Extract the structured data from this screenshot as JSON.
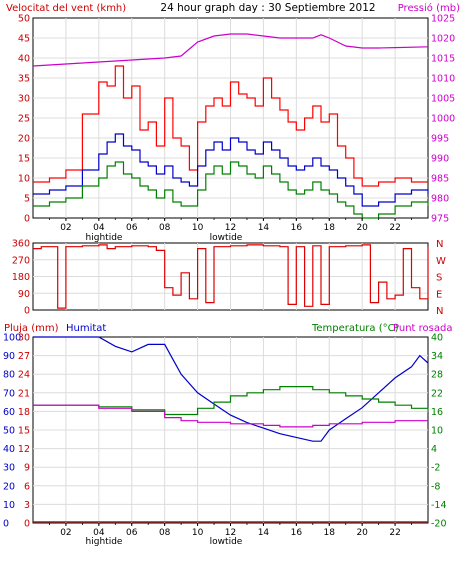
{
  "header": {
    "title": "24 hour graph day : 30 Septiembre 2012",
    "left_label": "Velocitat del vent (kmh)",
    "right_label": "Pressió (mb)"
  },
  "x_axis": {
    "ticks": [
      "02",
      "04",
      "06",
      "08",
      "10",
      "12",
      "14",
      "16",
      "18",
      "20",
      "22"
    ],
    "tide_labels": [
      "hightide",
      "lowtide"
    ]
  },
  "colors": {
    "wind_gust": "#ff0000",
    "wind_avg": "#0000cc",
    "wind_min": "#008000",
    "pressure": "#cc00cc",
    "direction": "#dd0000",
    "rain": "#dd0000",
    "humidity": "#0000cc",
    "temperature": "#008000",
    "dewpoint": "#cc00cc"
  },
  "panel3": {
    "rain_label": "Pluja (mm)",
    "humidity_label": "Humitat",
    "temp_label": "Temperatura (°C)",
    "dew_label": "Punt rosada"
  },
  "chart_data": [
    {
      "type": "line",
      "name": "wind-pressure",
      "x_range": [
        0,
        24
      ],
      "ylim_left": [
        0,
        50
      ],
      "yticks_left": [
        0,
        5,
        10,
        15,
        20,
        25,
        30,
        35,
        40,
        45,
        50
      ],
      "ylim_right": [
        975,
        1025
      ],
      "yticks_right": [
        975,
        980,
        985,
        990,
        995,
        1000,
        1005,
        1010,
        1015,
        1020,
        1025
      ],
      "series": [
        {
          "axis": "left",
          "color_key": "wind_gust",
          "points": [
            [
              0,
              9
            ],
            [
              1,
              10
            ],
            [
              2,
              12
            ],
            [
              3,
              26
            ],
            [
              4,
              34
            ],
            [
              4.5,
              33
            ],
            [
              5,
              38
            ],
            [
              5.5,
              30
            ],
            [
              6,
              33
            ],
            [
              6.5,
              22
            ],
            [
              7,
              24
            ],
            [
              7.5,
              18
            ],
            [
              8,
              30
            ],
            [
              8.5,
              20
            ],
            [
              9,
              18
            ],
            [
              9.5,
              12
            ],
            [
              10,
              24
            ],
            [
              10.5,
              28
            ],
            [
              11,
              30
            ],
            [
              11.5,
              28
            ],
            [
              12,
              34
            ],
            [
              12.5,
              31
            ],
            [
              13,
              30
            ],
            [
              13.5,
              28
            ],
            [
              14,
              35
            ],
            [
              14.5,
              30
            ],
            [
              15,
              27
            ],
            [
              15.5,
              24
            ],
            [
              16,
              22
            ],
            [
              16.5,
              25
            ],
            [
              17,
              28
            ],
            [
              17.5,
              24
            ],
            [
              18,
              26
            ],
            [
              18.5,
              18
            ],
            [
              19,
              15
            ],
            [
              19.5,
              10
            ],
            [
              20,
              8
            ],
            [
              21,
              9
            ],
            [
              22,
              10
            ],
            [
              23,
              9
            ],
            [
              24,
              9
            ]
          ]
        },
        {
          "axis": "left",
          "color_key": "wind_avg",
          "points": [
            [
              0,
              6
            ],
            [
              1,
              7
            ],
            [
              2,
              8
            ],
            [
              3,
              12
            ],
            [
              4,
              16
            ],
            [
              4.5,
              19
            ],
            [
              5,
              21
            ],
            [
              5.5,
              18
            ],
            [
              6,
              17
            ],
            [
              6.5,
              14
            ],
            [
              7,
              13
            ],
            [
              7.5,
              11
            ],
            [
              8,
              13
            ],
            [
              8.5,
              10
            ],
            [
              9,
              9
            ],
            [
              9.5,
              8
            ],
            [
              10,
              13
            ],
            [
              10.5,
              17
            ],
            [
              11,
              19
            ],
            [
              11.5,
              17
            ],
            [
              12,
              20
            ],
            [
              12.5,
              19
            ],
            [
              13,
              17
            ],
            [
              13.5,
              16
            ],
            [
              14,
              19
            ],
            [
              14.5,
              17
            ],
            [
              15,
              15
            ],
            [
              15.5,
              13
            ],
            [
              16,
              12
            ],
            [
              16.5,
              13
            ],
            [
              17,
              15
            ],
            [
              17.5,
              13
            ],
            [
              18,
              12
            ],
            [
              18.5,
              10
            ],
            [
              19,
              8
            ],
            [
              19.5,
              6
            ],
            [
              20,
              3
            ],
            [
              21,
              4
            ],
            [
              22,
              6
            ],
            [
              23,
              7
            ],
            [
              24,
              6
            ]
          ]
        },
        {
          "axis": "left",
          "color_key": "wind_min",
          "points": [
            [
              0,
              3
            ],
            [
              1,
              4
            ],
            [
              2,
              5
            ],
            [
              3,
              8
            ],
            [
              4,
              10
            ],
            [
              4.5,
              13
            ],
            [
              5,
              14
            ],
            [
              5.5,
              11
            ],
            [
              6,
              10
            ],
            [
              6.5,
              8
            ],
            [
              7,
              7
            ],
            [
              7.5,
              5
            ],
            [
              8,
              7
            ],
            [
              8.5,
              4
            ],
            [
              9,
              3
            ],
            [
              9.5,
              3
            ],
            [
              10,
              7
            ],
            [
              10.5,
              11
            ],
            [
              11,
              13
            ],
            [
              11.5,
              11
            ],
            [
              12,
              14
            ],
            [
              12.5,
              13
            ],
            [
              13,
              11
            ],
            [
              13.5,
              10
            ],
            [
              14,
              13
            ],
            [
              14.5,
              11
            ],
            [
              15,
              9
            ],
            [
              15.5,
              7
            ],
            [
              16,
              6
            ],
            [
              16.5,
              7
            ],
            [
              17,
              9
            ],
            [
              17.5,
              7
            ],
            [
              18,
              6
            ],
            [
              18.5,
              4
            ],
            [
              19,
              3
            ],
            [
              19.5,
              1
            ],
            [
              20,
              0
            ],
            [
              21,
              1
            ],
            [
              22,
              3
            ],
            [
              23,
              4
            ],
            [
              24,
              3
            ]
          ]
        },
        {
          "axis": "right",
          "color_key": "pressure",
          "points": [
            [
              0,
              1013
            ],
            [
              2,
              1013.5
            ],
            [
              4,
              1014
            ],
            [
              6,
              1014.5
            ],
            [
              8,
              1015
            ],
            [
              9,
              1015.5
            ],
            [
              10,
              1019
            ],
            [
              11,
              1020.5
            ],
            [
              12,
              1021
            ],
            [
              13,
              1021
            ],
            [
              14,
              1020.5
            ],
            [
              15,
              1020
            ],
            [
              16,
              1020
            ],
            [
              17,
              1020
            ],
            [
              17.5,
              1020.8
            ],
            [
              18,
              1020
            ],
            [
              19,
              1018
            ],
            [
              20,
              1017.5
            ],
            [
              21,
              1017.5
            ],
            [
              22,
              1017.6
            ],
            [
              24,
              1017.8
            ]
          ]
        }
      ]
    },
    {
      "type": "line",
      "name": "wind-direction",
      "x_range": [
        0,
        24
      ],
      "ylim": [
        0,
        360
      ],
      "yticks": [
        0,
        90,
        180,
        270,
        360
      ],
      "compass_labels": [
        "N",
        "W",
        "S",
        "E",
        "N"
      ],
      "points": [
        [
          0,
          330
        ],
        [
          0.5,
          340
        ],
        [
          1,
          340
        ],
        [
          1.5,
          10
        ],
        [
          2,
          340
        ],
        [
          3,
          345
        ],
        [
          4,
          350
        ],
        [
          4.5,
          330
        ],
        [
          5,
          340
        ],
        [
          6,
          345
        ],
        [
          7,
          340
        ],
        [
          7.5,
          320
        ],
        [
          8,
          120
        ],
        [
          8.5,
          80
        ],
        [
          9,
          200
        ],
        [
          9.5,
          60
        ],
        [
          10,
          330
        ],
        [
          10.5,
          40
        ],
        [
          11,
          340
        ],
        [
          12,
          345
        ],
        [
          13,
          350
        ],
        [
          14,
          345
        ],
        [
          15,
          340
        ],
        [
          15.5,
          30
        ],
        [
          16,
          340
        ],
        [
          16.5,
          20
        ],
        [
          17,
          345
        ],
        [
          17.5,
          30
        ],
        [
          18,
          340
        ],
        [
          19,
          345
        ],
        [
          20,
          350
        ],
        [
          20.5,
          40
        ],
        [
          21,
          150
        ],
        [
          21.5,
          60
        ],
        [
          22,
          80
        ],
        [
          22.5,
          330
        ],
        [
          23,
          120
        ],
        [
          23.5,
          60
        ],
        [
          24,
          340
        ]
      ]
    },
    {
      "type": "line",
      "name": "rain-humidity-temperature",
      "x_range": [
        0,
        24
      ],
      "ylim_rain": [
        0,
        30
      ],
      "yticks_rain": [
        0,
        3,
        6,
        9,
        12,
        15,
        18,
        21,
        24,
        27,
        30
      ],
      "ylim_humidity": [
        0,
        100
      ],
      "yticks_humidity": [
        0,
        10,
        20,
        30,
        40,
        50,
        60,
        70,
        80,
        90,
        100
      ],
      "ylim_temp": [
        -20,
        40
      ],
      "yticks_temp": [
        -20,
        -14,
        -8,
        -2,
        4,
        10,
        16,
        22,
        28,
        34,
        40
      ],
      "series": [
        {
          "axis": "rain",
          "color_key": "rain",
          "points": [
            [
              0,
              0.2
            ],
            [
              24,
              0.2
            ]
          ]
        },
        {
          "axis": "humidity",
          "color_key": "humidity",
          "points": [
            [
              0,
              100
            ],
            [
              3,
              100
            ],
            [
              4,
              100
            ],
            [
              5,
              95
            ],
            [
              6,
              92
            ],
            [
              7,
              96
            ],
            [
              8,
              96
            ],
            [
              8.5,
              88
            ],
            [
              9,
              80
            ],
            [
              10,
              70
            ],
            [
              11,
              64
            ],
            [
              12,
              58
            ],
            [
              13,
              54
            ],
            [
              14,
              51
            ],
            [
              15,
              48
            ],
            [
              16,
              46
            ],
            [
              17,
              44
            ],
            [
              17.5,
              44
            ],
            [
              18,
              50
            ],
            [
              19,
              56
            ],
            [
              20,
              62
            ],
            [
              21,
              70
            ],
            [
              22,
              78
            ],
            [
              23,
              84
            ],
            [
              23.5,
              90
            ],
            [
              24,
              86
            ]
          ]
        },
        {
          "axis": "temp",
          "color_key": "temperature",
          "points": [
            [
              0,
              18
            ],
            [
              2,
              18
            ],
            [
              4,
              17.5
            ],
            [
              6,
              16.5
            ],
            [
              8,
              15
            ],
            [
              9,
              15
            ],
            [
              10,
              17
            ],
            [
              11,
              19
            ],
            [
              12,
              21
            ],
            [
              13,
              22
            ],
            [
              14,
              23
            ],
            [
              15,
              24
            ],
            [
              16,
              24
            ],
            [
              17,
              23
            ],
            [
              18,
              22
            ],
            [
              19,
              21
            ],
            [
              20,
              20
            ],
            [
              21,
              19
            ],
            [
              22,
              18
            ],
            [
              23,
              17
            ],
            [
              24,
              16
            ]
          ]
        },
        {
          "axis": "temp",
          "color_key": "dewpoint",
          "points": [
            [
              0,
              18
            ],
            [
              2,
              18
            ],
            [
              4,
              17
            ],
            [
              6,
              16
            ],
            [
              8,
              14
            ],
            [
              9,
              13
            ],
            [
              10,
              12.5
            ],
            [
              12,
              12
            ],
            [
              14,
              11.5
            ],
            [
              15,
              11
            ],
            [
              16,
              11
            ],
            [
              17,
              11.5
            ],
            [
              18,
              12
            ],
            [
              20,
              12.5
            ],
            [
              22,
              13
            ],
            [
              24,
              13
            ]
          ]
        }
      ]
    }
  ]
}
